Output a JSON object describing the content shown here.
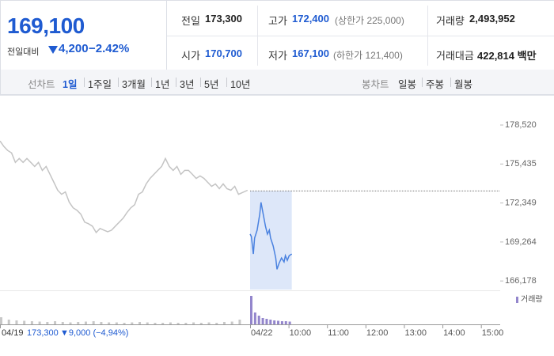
{
  "header": {
    "price": "169,100",
    "change_label": "전일대비",
    "change": "4,200",
    "change_pct": "−2.42%",
    "stats": [
      {
        "label": "전일",
        "value": "173,300"
      },
      {
        "label": "고가",
        "value": "172,400",
        "note": "(상한가 225,000)"
      },
      {
        "label": "거래량",
        "value": "2,493,952"
      },
      {
        "label": "시가",
        "value": "170,700"
      },
      {
        "label": "저가",
        "value": "167,100",
        "note": "(하한가 121,400)"
      },
      {
        "label": "거래대금",
        "value": "422,814 백만"
      }
    ]
  },
  "tabs": {
    "line_label": "선차트",
    "line_periods": [
      "1일",
      "1주일",
      "3개월",
      "1년",
      "3년",
      "5년",
      "10년"
    ],
    "selected": 0,
    "candle_label": "봉차트",
    "candle_periods": [
      "일봉",
      "주봉",
      "월봉"
    ]
  },
  "chart_data": {
    "type": "line",
    "xlim": [
      0,
      780
    ],
    "xticks": [
      {
        "value": 0,
        "label": "04/19"
      },
      {
        "value": 390,
        "label": "04/22"
      },
      {
        "value": 450,
        "label": "10:00"
      },
      {
        "value": 510,
        "label": "11:00"
      },
      {
        "value": 570,
        "label": "12:00"
      },
      {
        "value": 630,
        "label": "13:00"
      },
      {
        "value": 690,
        "label": "14:00"
      },
      {
        "value": 750,
        "label": "15:00"
      }
    ],
    "ylim": [
      165500,
      180400
    ],
    "yticks": [
      {
        "value": 166178,
        "label": "166,178"
      },
      {
        "value": 169264,
        "label": "169,264"
      },
      {
        "value": 172349,
        "label": "172,349"
      },
      {
        "value": 175435,
        "label": "175,435"
      },
      {
        "value": 178520,
        "label": "178,520"
      }
    ],
    "reference_line": 173300,
    "prev_close_label": "173,300",
    "prev_change_label": "▼9,000 (−4,94%)",
    "series": [
      {
        "color": "#c4c4c4",
        "x": [
          0,
          6,
          12,
          18,
          24,
          30,
          36,
          42,
          48,
          54,
          60,
          66,
          72,
          78,
          84,
          90,
          96,
          102,
          108,
          114,
          120,
          126,
          132,
          138,
          144,
          150,
          156,
          162,
          168,
          174,
          180,
          186,
          192,
          198,
          204,
          210,
          216,
          222,
          228,
          234,
          240,
          246,
          252,
          258,
          264,
          270,
          276,
          282,
          288,
          294,
          300,
          306,
          312,
          318,
          324,
          330,
          336,
          342,
          348,
          354,
          360,
          366,
          372,
          386
        ],
        "values": [
          177260,
          176819,
          176504,
          176315,
          175559,
          175874,
          175559,
          175874,
          175559,
          175244,
          175559,
          174929,
          175244,
          174614,
          173984,
          173354,
          173039,
          173228,
          172409,
          171968,
          171779,
          171464,
          170834,
          170708,
          170519,
          170015,
          170330,
          170204,
          170078,
          170204,
          170519,
          170834,
          171149,
          171590,
          171968,
          172220,
          173039,
          173228,
          173858,
          174299,
          174614,
          174929,
          175244,
          175874,
          175244,
          174929,
          175244,
          174614,
          174929,
          174929,
          174614,
          174299,
          174488,
          174299,
          173984,
          173669,
          173858,
          173480,
          173858,
          173480,
          173354,
          173669,
          173039,
          173354
        ]
      },
      {
        "color": "#4a82e0",
        "x": [
          390,
          392,
          395,
          397,
          401,
          405,
          407,
          410,
          414,
          417,
          420,
          422,
          426,
          430,
          432,
          435,
          439,
          443,
          445,
          448,
          451,
          455
        ],
        "values": [
          169889,
          169700,
          168314,
          169574,
          170204,
          171464,
          172400,
          171590,
          170519,
          169889,
          170204,
          169574,
          168944,
          168000,
          167100,
          167558,
          168000,
          167684,
          168188,
          167810,
          168188,
          168314
        ]
      }
    ],
    "volume": {
      "name": "거래량",
      "ylim": [
        0,
        400000
      ],
      "series": [
        {
          "color": "#c8c8c8",
          "x": [
            0,
            12,
            24,
            36,
            48,
            60,
            72,
            84,
            96,
            108,
            120,
            132,
            144,
            156,
            168,
            180,
            192,
            204,
            216,
            228,
            240,
            252,
            264,
            276,
            288,
            300,
            312,
            324,
            336,
            348,
            360,
            372
          ],
          "values": [
            90000,
            60000,
            50000,
            45000,
            40000,
            35000,
            30000,
            40000,
            30000,
            25000,
            30000,
            35000,
            40000,
            30000,
            25000,
            25000,
            20000,
            25000,
            30000,
            25000,
            20000,
            20000,
            25000,
            20000,
            20000,
            25000,
            20000,
            25000,
            20000,
            30000,
            35000,
            60000
          ]
        },
        {
          "color": "#9386cc",
          "x": [
            390,
            396,
            402,
            408,
            414,
            420,
            426,
            432,
            438,
            444,
            450
          ],
          "values": [
            360000,
            150000,
            110000,
            80000,
            70000,
            60000,
            50000,
            45000,
            40000,
            40000,
            35000
          ]
        }
      ]
    }
  }
}
